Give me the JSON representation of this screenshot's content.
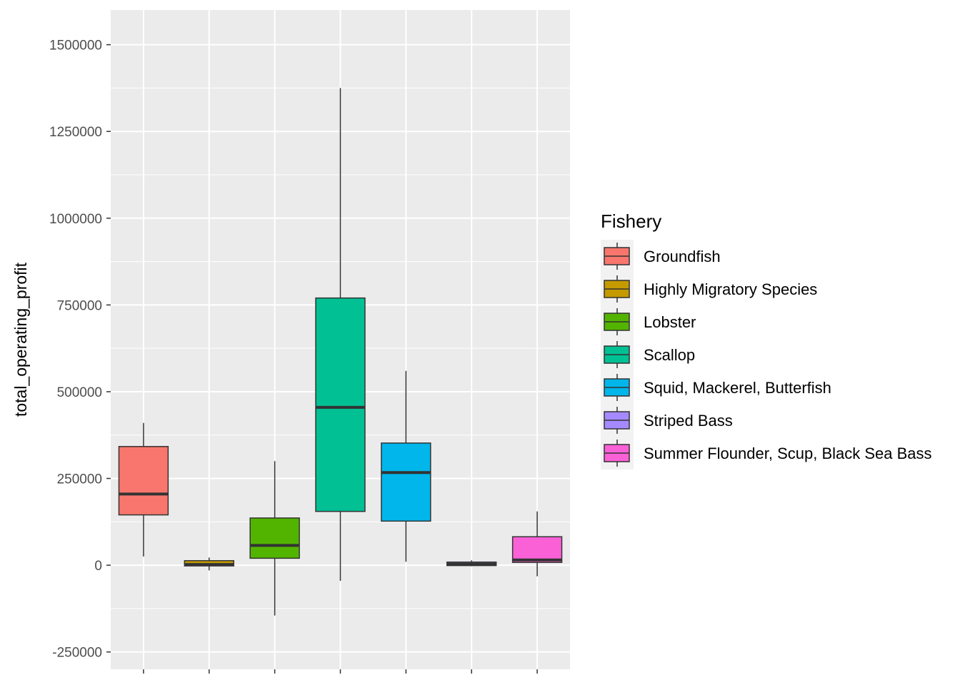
{
  "chart_data": {
    "type": "boxplot",
    "title": "",
    "xlabel": "",
    "ylabel": "total_operating_profit",
    "ylim": [
      -300000,
      1600000
    ],
    "y_ticks": [
      -250000,
      0,
      250000,
      500000,
      750000,
      1000000,
      1250000,
      1500000
    ],
    "y_tick_labels": [
      "-250000",
      "0",
      "250000",
      "500000",
      "750000",
      "1000000",
      "1250000",
      "1500000"
    ],
    "legend": {
      "title": "Fishery",
      "position": "right"
    },
    "series": [
      {
        "name": "Groundfish",
        "color": "#F8766D",
        "min": 25000,
        "q1": 145000,
        "median": 205000,
        "q3": 342000,
        "max": 410000
      },
      {
        "name": "Highly Migratory Species",
        "color": "#C49A00",
        "min": -15000,
        "q1": -2000,
        "median": 2000,
        "q3": 13000,
        "max": 22000
      },
      {
        "name": "Lobster",
        "color": "#53B400",
        "min": -145000,
        "q1": 20000,
        "median": 57000,
        "q3": 136000,
        "max": 300000
      },
      {
        "name": "Scallop",
        "color": "#00C094",
        "min": -45000,
        "q1": 155000,
        "median": 455000,
        "q3": 770000,
        "max": 1375000
      },
      {
        "name": "Squid, Mackerel, Butterfish",
        "color": "#00B6EB",
        "min": 10000,
        "q1": 127000,
        "median": 267000,
        "q3": 352000,
        "max": 560000
      },
      {
        "name": "Striped Bass",
        "color": "#A58AFF",
        "min": -3000,
        "q1": -1000,
        "median": 3000,
        "q3": 9000,
        "max": 14000
      },
      {
        "name": "Summer Flounder, Scup, Black Sea Bass",
        "color": "#FB61D7",
        "min": -32000,
        "q1": 8000,
        "median": 15000,
        "q3": 82000,
        "max": 155000
      }
    ]
  }
}
